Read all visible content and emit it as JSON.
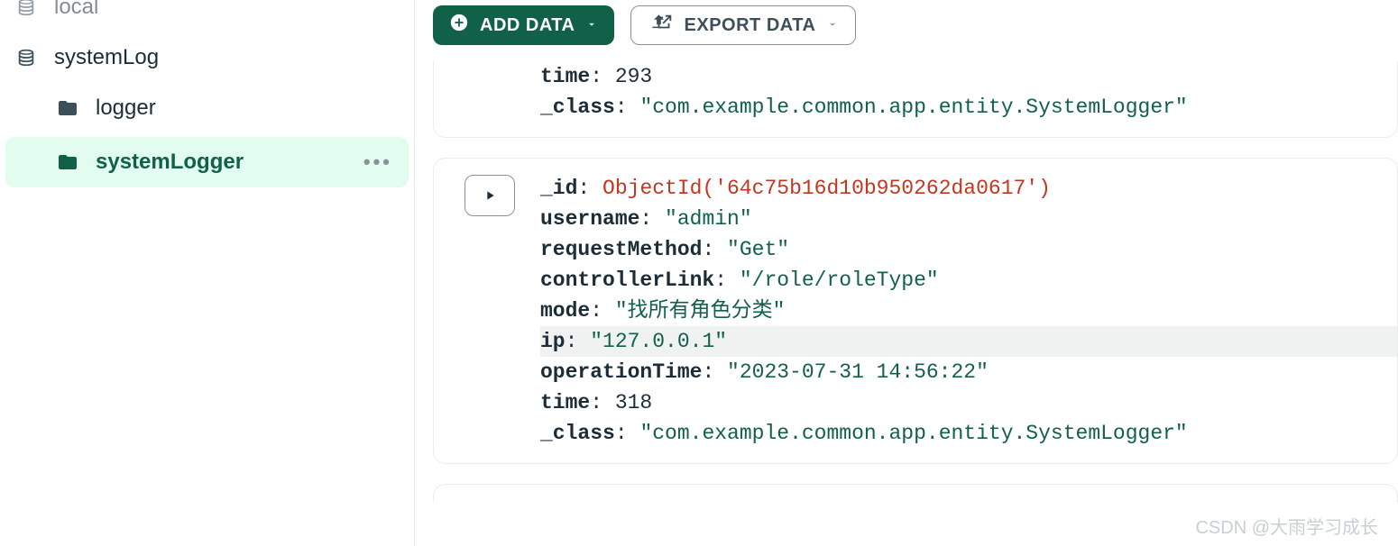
{
  "colors": {
    "accent": "#116149",
    "accent_bg": "#e3fcf0",
    "string": "#116149",
    "objectid": "#c43621",
    "border": "#e8edeb",
    "muted": "#889397",
    "row_highlight": "#f0f2f1"
  },
  "sidebar": {
    "databases": [
      {
        "name": "local",
        "icon": "database-icon"
      },
      {
        "name": "systemLog",
        "icon": "database-icon"
      }
    ],
    "collections": [
      {
        "name": "logger",
        "icon": "folder-icon",
        "active": false
      },
      {
        "name": "systemLogger",
        "icon": "folder-icon",
        "active": true
      }
    ],
    "more_icon": "•••"
  },
  "toolbar": {
    "add_label": "ADD DATA",
    "export_label": "EXPORT DATA"
  },
  "documents": [
    {
      "partial": true,
      "fields": [
        {
          "key": "time",
          "value": "293",
          "type": "number"
        },
        {
          "key": "_class",
          "value": "\"com.example.common.app.entity.SystemLogger\"",
          "type": "string"
        }
      ]
    },
    {
      "partial": false,
      "highlight_key": "ip",
      "fields": [
        {
          "key": "_id",
          "value": "ObjectId('64c75b16d10b950262da0617')",
          "type": "objectid"
        },
        {
          "key": "username",
          "value": "\"admin\"",
          "type": "string"
        },
        {
          "key": "requestMethod",
          "value": "\"Get\"",
          "type": "string"
        },
        {
          "key": "controllerLink",
          "value": "\"/role/roleType\"",
          "type": "string"
        },
        {
          "key": "mode",
          "value": "\"找所有角色分类\"",
          "type": "string"
        },
        {
          "key": "ip",
          "value": "\"127.0.0.1\"",
          "type": "string"
        },
        {
          "key": "operationTime",
          "value": "\"2023-07-31 14:56:22\"",
          "type": "string"
        },
        {
          "key": "time",
          "value": "318",
          "type": "number"
        },
        {
          "key": "_class",
          "value": "\"com.example.common.app.entity.SystemLogger\"",
          "type": "string"
        }
      ]
    }
  ],
  "watermark": "CSDN @大雨学习成长"
}
